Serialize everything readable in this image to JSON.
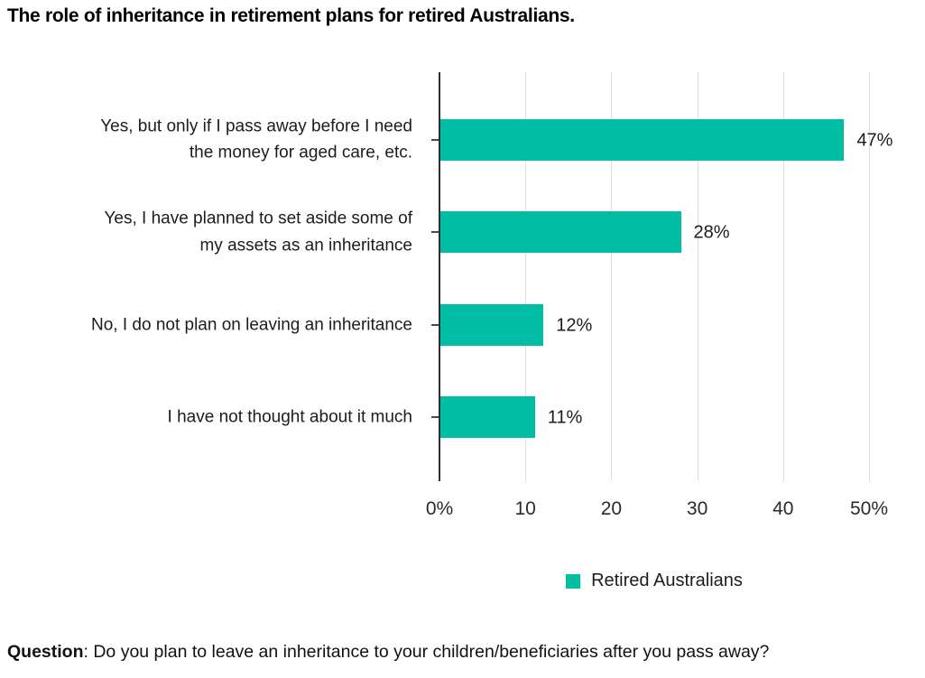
{
  "title": "The role of inheritance in retirement plans for retired Australians.",
  "chart_data": {
    "type": "bar",
    "orientation": "horizontal",
    "title": "The role of inheritance in retirement plans for retired Australians.",
    "categories": [
      "Yes, but only if I pass away before I need\nthe money for aged care, etc.",
      "Yes, I have planned to set aside some of\nmy assets as an inheritance",
      "No, I do not plan on leaving an inheritance",
      "I have not thought about it much"
    ],
    "series": [
      {
        "name": "Retired Australians",
        "values": [
          47,
          28,
          12,
          11
        ]
      }
    ],
    "value_labels": [
      "47%",
      "28%",
      "12%",
      "11%"
    ],
    "xticks": [
      {
        "value": 0,
        "label": "0%"
      },
      {
        "value": 10,
        "label": "10"
      },
      {
        "value": 20,
        "label": "20"
      },
      {
        "value": 30,
        "label": "30"
      },
      {
        "value": 40,
        "label": "40"
      },
      {
        "value": 50,
        "label": "50%"
      }
    ],
    "xlim": [
      0,
      50
    ],
    "xlabel": "",
    "ylabel": "",
    "grid": true,
    "legend_position": "bottom",
    "bar_color": "#00BDA4",
    "gridline_color": "#dedede",
    "axis_color": "#2f2f2f"
  },
  "legend": {
    "label": "Retired Australians",
    "swatch_color": "#00BDA4"
  },
  "footer": {
    "bold": "Question",
    "text": ": Do you plan to leave an inheritance to your children/beneficiaries after you pass away?"
  }
}
